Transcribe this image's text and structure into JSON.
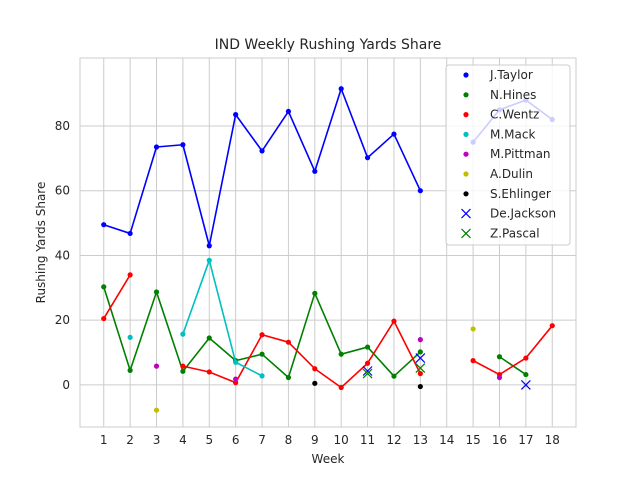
{
  "chart_data": {
    "type": "line",
    "title": "IND Weekly Rushing Yards Share",
    "xlabel": "Week",
    "ylabel": "Rushing Yards Share",
    "xlim": [
      0.1,
      18.9
    ],
    "ylim": [
      -13,
      101
    ],
    "xticks": [
      1,
      2,
      3,
      4,
      5,
      6,
      7,
      8,
      9,
      10,
      11,
      12,
      13,
      14,
      15,
      16,
      17,
      18
    ],
    "yticks": [
      0,
      20,
      40,
      60,
      80
    ],
    "grid": true,
    "legend_position": "top-right",
    "series": [
      {
        "name": "J.Taylor",
        "color": "#0000ff",
        "marker": "dot",
        "line": true,
        "points": [
          [
            1,
            49.5
          ],
          [
            2,
            46.8
          ],
          [
            3,
            73.5
          ],
          [
            4,
            74.2
          ],
          [
            5,
            43
          ],
          [
            6,
            83.5
          ],
          [
            7,
            72.3
          ],
          [
            8,
            84.5
          ],
          [
            9,
            66
          ],
          [
            10,
            91.5
          ],
          [
            11,
            70.2
          ],
          [
            12,
            77.5
          ],
          [
            13,
            60
          ],
          [
            15,
            75
          ],
          [
            16,
            85
          ],
          [
            17,
            88
          ],
          [
            18,
            82
          ]
        ]
      },
      {
        "name": "N.Hines",
        "color": "#008000",
        "marker": "dot",
        "line": true,
        "points": [
          [
            1,
            30.3
          ],
          [
            2,
            4.5
          ],
          [
            3,
            28.7
          ],
          [
            4,
            4.2
          ],
          [
            5,
            14.5
          ],
          [
            6,
            7.5
          ],
          [
            7,
            9.5
          ],
          [
            8,
            2.3
          ],
          [
            9,
            28.3
          ],
          [
            10,
            9.5
          ],
          [
            11,
            11.7
          ],
          [
            12,
            2.7
          ],
          [
            13,
            10.2
          ],
          [
            16,
            8.7
          ],
          [
            17,
            3.2
          ]
        ]
      },
      {
        "name": "C.Wentz",
        "color": "#ff0000",
        "marker": "dot",
        "line": true,
        "points": [
          [
            1,
            20.5
          ],
          [
            2,
            34
          ],
          [
            4,
            5.8
          ],
          [
            5,
            4
          ],
          [
            6,
            0.7
          ],
          [
            7,
            15.5
          ],
          [
            8,
            13.2
          ],
          [
            9,
            5
          ],
          [
            10,
            -0.8
          ],
          [
            11,
            6.7
          ],
          [
            12,
            19.7
          ],
          [
            13,
            3.5
          ],
          [
            15,
            7.5
          ],
          [
            16,
            3.2
          ],
          [
            17,
            8.3
          ],
          [
            18,
            18.3
          ]
        ]
      },
      {
        "name": "M.Mack",
        "color": "#00bfbf",
        "marker": "dot",
        "line": true,
        "points": [
          [
            2,
            14.7
          ],
          [
            4,
            15.7
          ],
          [
            5,
            38.5
          ],
          [
            6,
            7
          ],
          [
            7,
            2.8
          ]
        ]
      },
      {
        "name": "M.Pittman",
        "color": "#bf00bf",
        "marker": "dot",
        "line": false,
        "points": [
          [
            3,
            5.8
          ],
          [
            6,
            1.8
          ],
          [
            13,
            14
          ],
          [
            16,
            2.3
          ]
        ]
      },
      {
        "name": "A.Dulin",
        "color": "#bfbf00",
        "marker": "dot",
        "line": false,
        "points": [
          [
            3,
            -7.8
          ],
          [
            15,
            17.3
          ]
        ]
      },
      {
        "name": "S.Ehlinger",
        "color": "#000000",
        "marker": "dot",
        "line": false,
        "points": [
          [
            9,
            0.5
          ],
          [
            13,
            -0.5
          ]
        ]
      },
      {
        "name": "De.Jackson",
        "color": "#0000ff",
        "marker": "x",
        "line": false,
        "points": [
          [
            11,
            4.3
          ],
          [
            13,
            8.3
          ],
          [
            17,
            0
          ]
        ]
      },
      {
        "name": "Z.Pascal",
        "color": "#008000",
        "marker": "x",
        "line": false,
        "points": [
          [
            11,
            3.5
          ],
          [
            13,
            5.2
          ]
        ]
      }
    ]
  }
}
